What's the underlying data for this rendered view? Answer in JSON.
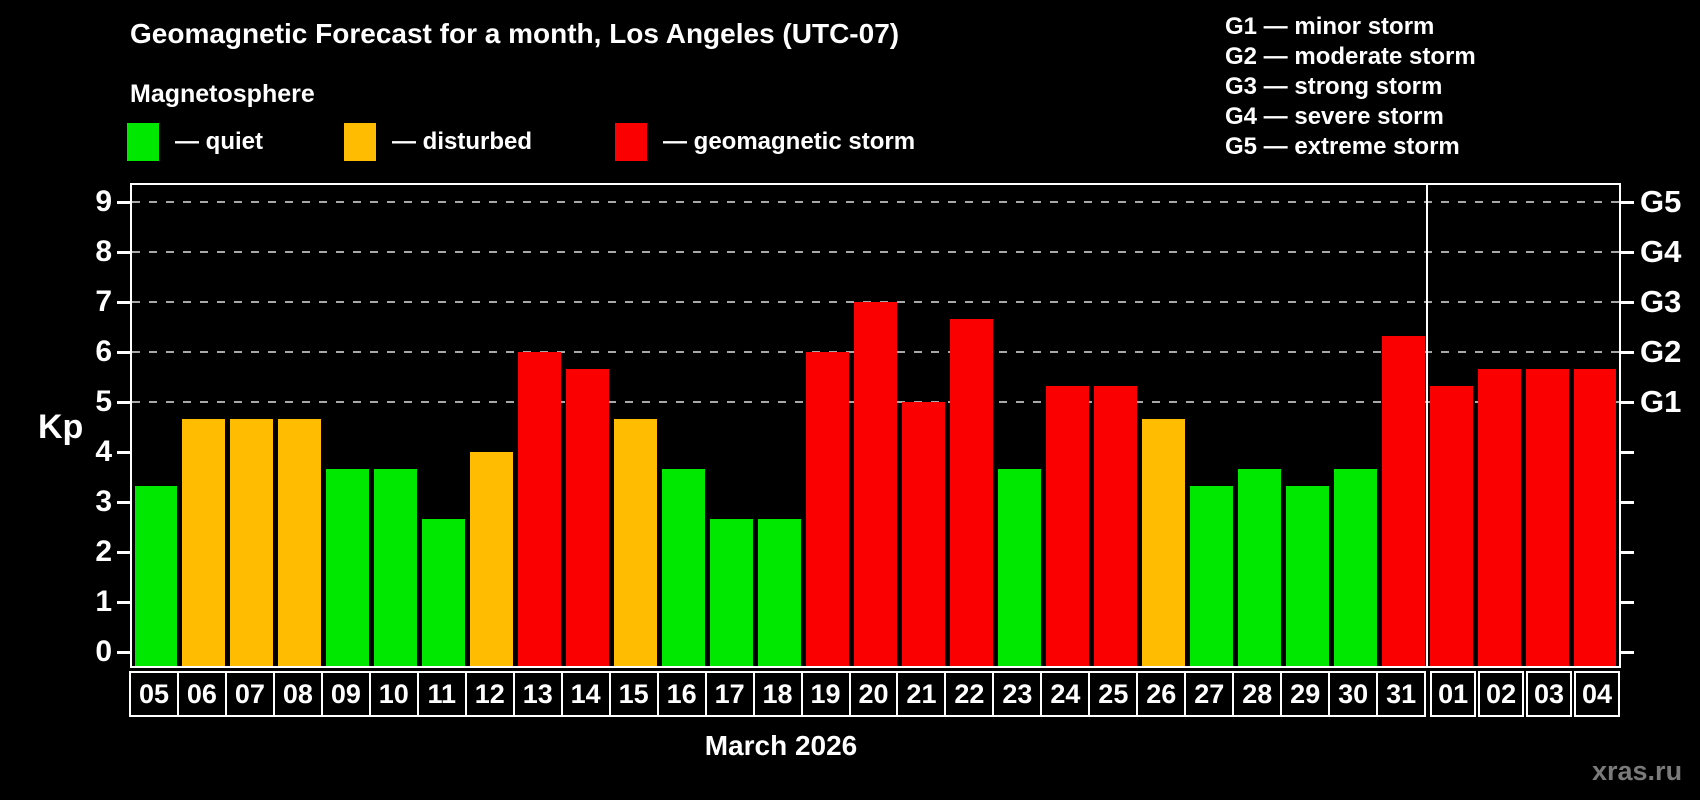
{
  "title": "Geomagnetic Forecast for a month, Los Angeles (UTC-07)",
  "subtitle": "Magnetosphere",
  "legend": {
    "quiet_label": "— quiet",
    "disturbed_label": "— disturbed",
    "storm_label": "— geomagnetic storm"
  },
  "g_scale_legend": {
    "g1": "G1 — minor storm",
    "g2": "G2 — moderate storm",
    "g3": "G3 — strong storm",
    "g4": "G4 — severe storm",
    "g5": "G5 — extreme storm"
  },
  "footer": {
    "month_label": "March 2026",
    "watermark": "xras.ru"
  },
  "colors": {
    "quiet": "#00e800",
    "disturbed": "#ffbc00",
    "storm": "#fb0000",
    "grid": "#a8a8a8",
    "frame": "#ffffff",
    "watermark_text": "#7a7a7a"
  },
  "chart_data": {
    "type": "bar",
    "title": "Geomagnetic Forecast for a month, Los Angeles (UTC-07)",
    "xlabel": "March 2026",
    "ylabel": "Kp",
    "ylim": [
      0,
      9
    ],
    "grid": "dashed horizontal at Kp 5-9 only",
    "y_ticks": [
      0,
      1,
      2,
      3,
      4,
      5,
      6,
      7,
      8,
      9
    ],
    "right_axis": [
      {
        "kp": 5,
        "label": "G1"
      },
      {
        "kp": 6,
        "label": "G2"
      },
      {
        "kp": 7,
        "label": "G3"
      },
      {
        "kp": 8,
        "label": "G4"
      },
      {
        "kp": 9,
        "label": "G5"
      }
    ],
    "month_boundary_after_index": 26,
    "categories": [
      "05",
      "06",
      "07",
      "08",
      "09",
      "10",
      "11",
      "12",
      "13",
      "14",
      "15",
      "16",
      "17",
      "18",
      "19",
      "20",
      "21",
      "22",
      "23",
      "24",
      "25",
      "26",
      "27",
      "28",
      "29",
      "30",
      "31",
      "01",
      "02",
      "03",
      "04"
    ],
    "values": [
      3.33,
      4.67,
      4.67,
      4.67,
      3.67,
      3.67,
      2.67,
      4.0,
      6.0,
      5.67,
      4.67,
      3.67,
      2.67,
      2.67,
      6.0,
      7.0,
      5.0,
      6.67,
      3.67,
      5.33,
      5.33,
      4.67,
      3.33,
      3.67,
      3.33,
      3.67,
      6.33,
      5.33,
      5.67,
      5.67,
      5.67
    ],
    "statuses": [
      "quiet",
      "disturbed",
      "disturbed",
      "disturbed",
      "quiet",
      "quiet",
      "quiet",
      "disturbed",
      "storm",
      "storm",
      "disturbed",
      "quiet",
      "quiet",
      "quiet",
      "storm",
      "storm",
      "storm",
      "storm",
      "quiet",
      "storm",
      "storm",
      "disturbed",
      "quiet",
      "quiet",
      "quiet",
      "quiet",
      "storm",
      "storm",
      "storm",
      "storm",
      "storm"
    ]
  }
}
